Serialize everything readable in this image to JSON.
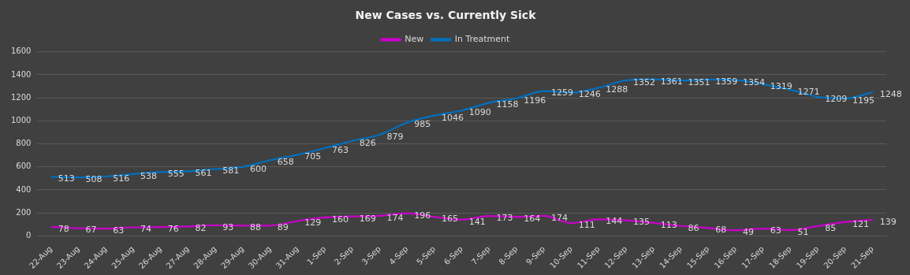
{
  "chart_data": {
    "type": "line",
    "title": "New Cases vs. Currently Sick",
    "categories": [
      "22-Aug",
      "23-Aug",
      "24-Aug",
      "25-Aug",
      "26-Aug",
      "27-Aug",
      "28-Aug",
      "29-Aug",
      "30-Aug",
      "31-Aug",
      "1-Sep",
      "2-Sep",
      "3-Sep",
      "4-Sep",
      "5-Sep",
      "6-Sep",
      "7-Sep",
      "8-Sep",
      "9-Sep",
      "10-Sep",
      "11-Sep",
      "12-Sep",
      "13-Sep",
      "14-Sep",
      "15-Sep",
      "16-Sep",
      "17-Sep",
      "18-Sep",
      "19-Sep",
      "20-Sep",
      "21-Sep"
    ],
    "series": [
      {
        "name": "New",
        "color": "#cc00cc",
        "values": [
          78,
          67,
          63,
          74,
          76,
          82,
          93,
          88,
          89,
          129,
          160,
          169,
          174,
          196,
          165,
          141,
          173,
          164,
          174,
          111,
          144,
          135,
          113,
          86,
          68,
          49,
          63,
          51,
          85,
          121,
          139
        ]
      },
      {
        "name": "In Treatment",
        "color": "#0070c0",
        "values": [
          513,
          508,
          516,
          538,
          555,
          561,
          581,
          600,
          658,
          705,
          763,
          826,
          879,
          985,
          1046,
          1090,
          1158,
          1196,
          1259,
          1246,
          1288,
          1352,
          1361,
          1351,
          1359,
          1354,
          1319,
          1271,
          1209,
          1195,
          1248
        ]
      }
    ],
    "ylim": [
      0,
      1600
    ],
    "yticks": [
      0,
      200,
      400,
      600,
      800,
      1000,
      1200,
      1400,
      1600
    ],
    "grid": "y",
    "legend": "top",
    "marker": "none",
    "line_style": "solid",
    "data_labels": true
  }
}
